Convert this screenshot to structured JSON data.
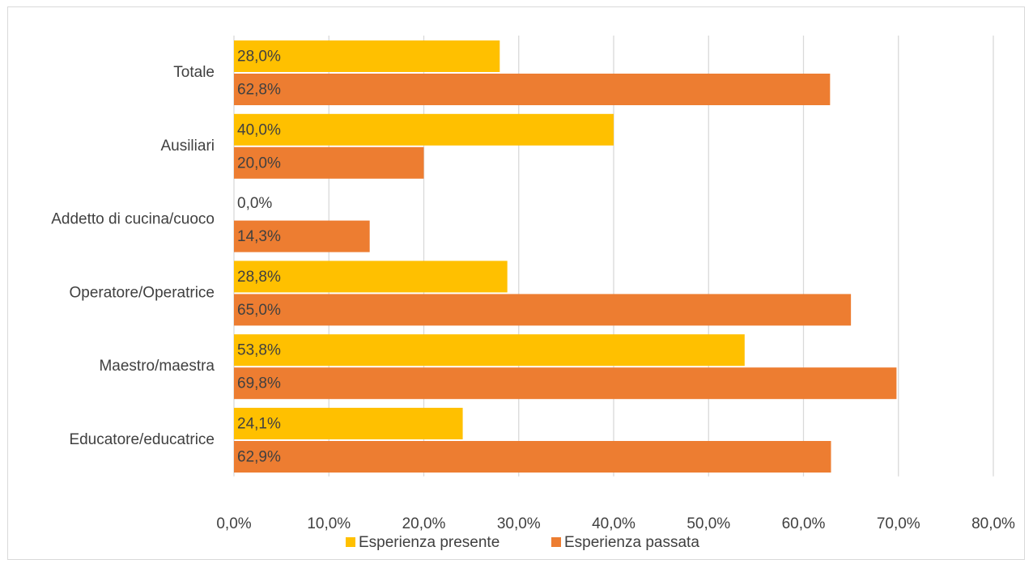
{
  "chart_data": {
    "type": "bar",
    "orientation": "horizontal",
    "categories": [
      "Totale",
      "Ausiliari",
      "Addetto di cucina/cuoco",
      "Operatore/Operatrice",
      "Maestro/maestra",
      "Educatore/educatrice"
    ],
    "series": [
      {
        "name": "Esperienza presente",
        "color": "#FFC000",
        "values": [
          28.0,
          40.0,
          0.0,
          28.8,
          53.8,
          24.1
        ],
        "labels": [
          "28,0%",
          "40,0%",
          "0,0%",
          "28,8%",
          "53,8%",
          "24,1%"
        ]
      },
      {
        "name": "Esperienza passata",
        "color": "#ED7D31",
        "values": [
          62.8,
          20.0,
          14.3,
          65.0,
          69.8,
          62.9
        ],
        "labels": [
          "62,8%",
          "20,0%",
          "14,3%",
          "65,0%",
          "69,8%",
          "62,9%"
        ]
      }
    ],
    "xlim": [
      0,
      80
    ],
    "xticks": [
      0,
      10,
      20,
      30,
      40,
      50,
      60,
      70,
      80
    ],
    "xtick_labels": [
      "0,0%",
      "10,0%",
      "20,0%",
      "30,0%",
      "40,0%",
      "50,0%",
      "60,0%",
      "70,0%",
      "80,0%"
    ],
    "grid": "vertical",
    "legend_position": "bottom",
    "title": "",
    "xlabel": "",
    "ylabel": ""
  }
}
